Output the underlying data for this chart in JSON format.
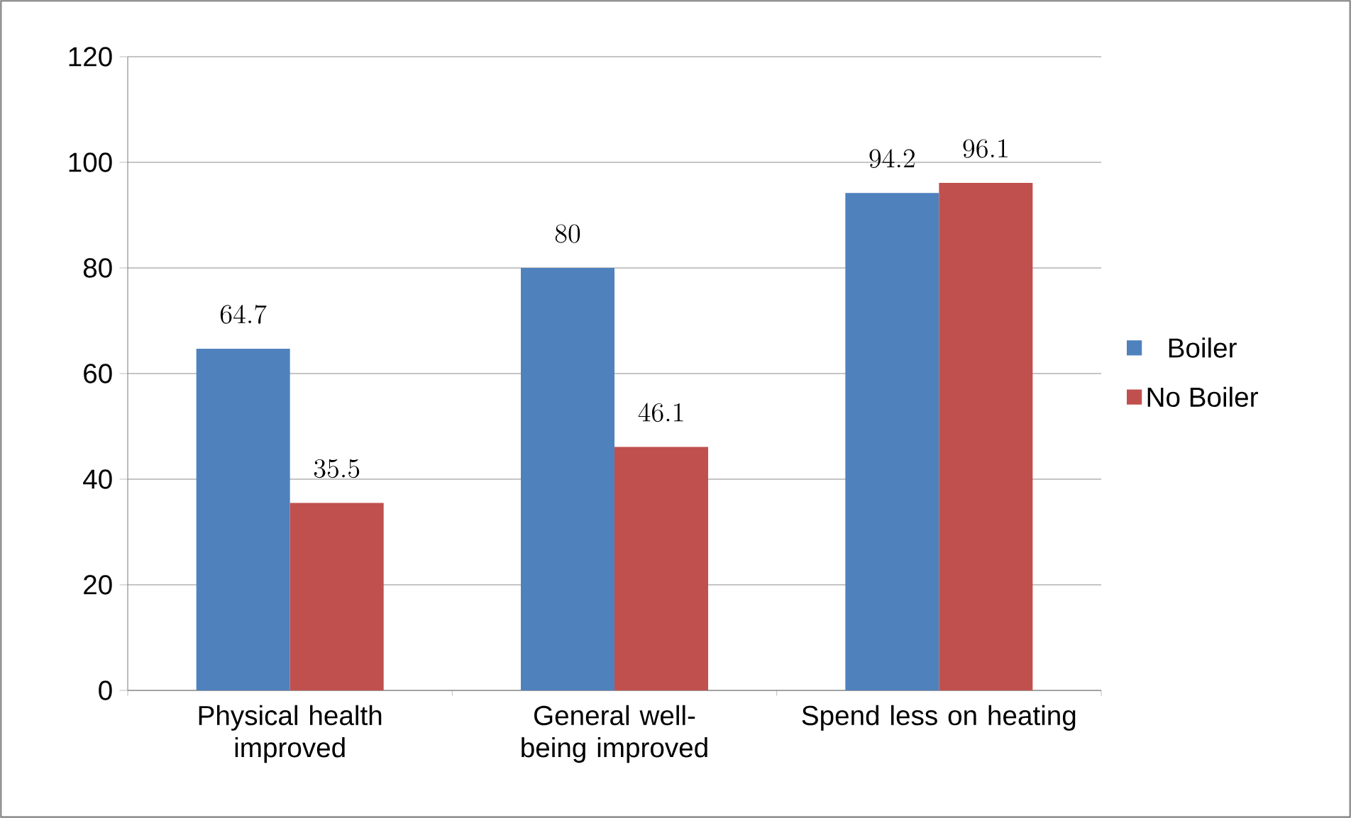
{
  "chart_data": {
    "type": "bar",
    "categories": [
      "Physical health improved",
      "General well-being improved",
      "Spend less on heating"
    ],
    "series": [
      {
        "name": "Boiler",
        "color": "#4f81bd",
        "values": [
          64.7,
          80,
          94.2
        ]
      },
      {
        "name": "No Boiler",
        "color": "#c0504d",
        "values": [
          35.5,
          46.1,
          96.1
        ]
      }
    ],
    "ylim": [
      0,
      120
    ],
    "yticks": [
      0,
      20,
      40,
      60,
      80,
      100,
      120
    ],
    "grid": "y",
    "legend": "right",
    "data_labels": true
  }
}
